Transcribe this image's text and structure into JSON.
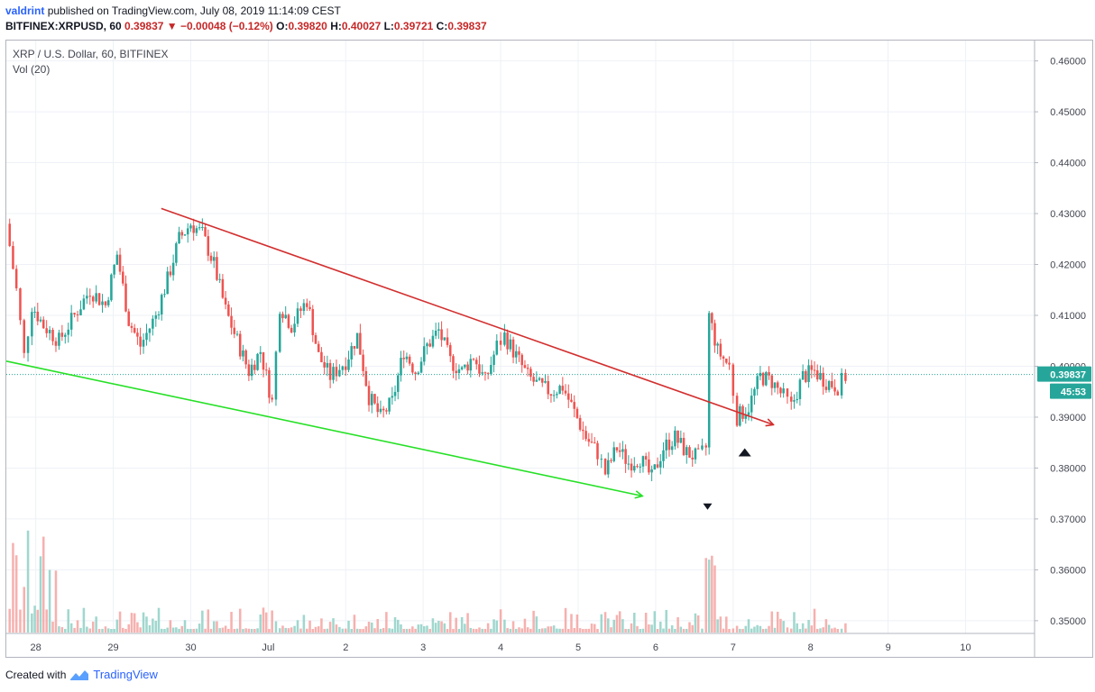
{
  "header": {
    "user": "valdrint",
    "published_text": "published on TradingView.com, July 08, 2019 11:14:09 CEST",
    "symbol": "BITFINEX:XRPUSD, 60",
    "last": "0.39837",
    "change": "−0.00048 (−0.12%)",
    "o_label": "O:",
    "o": "0.39820",
    "h_label": "H:",
    "h": "0.40027",
    "l_label": "L:",
    "l": "0.39721",
    "c_label": "C:",
    "c": "0.39837"
  },
  "legend": {
    "title": "XRP / U.S. Dollar, 60, BITFINEX",
    "volume": "Vol (20)"
  },
  "footer": {
    "created": "Created with",
    "brand": "TradingView"
  },
  "colors": {
    "up": "#26a69a",
    "down": "#ef5350",
    "vol_up": "#8fd0c6",
    "vol_down": "#f4a3a1",
    "resistance": "#d32f2f",
    "support": "#26e026",
    "price_line": "#26a69a"
  },
  "chart_data": {
    "type": "candlestick",
    "title": "XRP / U.S. Dollar, 60, BITFINEX",
    "y_tick_labels": [
      "0.46000",
      "0.45000",
      "0.44000",
      "0.43000",
      "0.42000",
      "0.41000",
      "0.40000",
      "0.39000",
      "0.38000",
      "0.37000",
      "0.36000",
      "0.35000"
    ],
    "y_ticks": [
      0.46,
      0.45,
      0.44,
      0.43,
      0.42,
      0.41,
      0.4,
      0.39,
      0.38,
      0.37,
      0.36,
      0.35
    ],
    "x_tick_labels": [
      "28",
      "29",
      "30",
      "Jul",
      "2",
      "3",
      "4",
      "5",
      "6",
      "7",
      "8",
      "9",
      "10"
    ],
    "x_ticks": [
      28,
      29,
      30,
      31,
      32,
      33,
      34,
      35,
      36,
      37,
      38,
      39,
      40
    ],
    "ylim": [
      0.3475,
      0.464
    ],
    "xlim": [
      27.62,
      40.89
    ],
    "last_price": "0.39837",
    "last_price_value": 0.39837,
    "countdown": "45:53",
    "trendlines": [
      {
        "name": "resistance",
        "x1": 29.62,
        "y1": 0.431,
        "x2": 37.52,
        "y2": 0.3885,
        "arrow": true
      },
      {
        "name": "support",
        "x1": 27.62,
        "y1": 0.401,
        "x2": 35.83,
        "y2": 0.3745,
        "arrow": true
      }
    ],
    "markers": [
      {
        "name": "down-marker",
        "x": 36.67,
        "y": 0.3725,
        "dir": "down"
      },
      {
        "name": "up-marker",
        "x": 37.15,
        "y": 0.383,
        "dir": "up"
      }
    ],
    "path": [
      [
        27.62,
        0.428
      ],
      [
        27.75,
        0.415
      ],
      [
        27.85,
        0.402
      ],
      [
        27.95,
        0.412
      ],
      [
        28.1,
        0.408
      ],
      [
        28.3,
        0.405
      ],
      [
        28.5,
        0.41
      ],
      [
        28.7,
        0.415
      ],
      [
        28.9,
        0.412
      ],
      [
        29.05,
        0.422
      ],
      [
        29.2,
        0.409
      ],
      [
        29.35,
        0.404
      ],
      [
        29.55,
        0.41
      ],
      [
        29.7,
        0.417
      ],
      [
        29.85,
        0.425
      ],
      [
        30.0,
        0.428
      ],
      [
        30.15,
        0.426
      ],
      [
        30.3,
        0.42
      ],
      [
        30.45,
        0.411
      ],
      [
        30.6,
        0.405
      ],
      [
        30.75,
        0.399
      ],
      [
        30.9,
        0.403
      ],
      [
        31.05,
        0.393
      ],
      [
        31.15,
        0.412
      ],
      [
        31.3,
        0.408
      ],
      [
        31.5,
        0.413
      ],
      [
        31.65,
        0.402
      ],
      [
        31.8,
        0.398
      ],
      [
        32.0,
        0.401
      ],
      [
        32.15,
        0.406
      ],
      [
        32.3,
        0.394
      ],
      [
        32.45,
        0.39
      ],
      [
        32.6,
        0.393
      ],
      [
        32.75,
        0.403
      ],
      [
        32.9,
        0.399
      ],
      [
        33.05,
        0.404
      ],
      [
        33.2,
        0.407
      ],
      [
        33.35,
        0.401
      ],
      [
        33.5,
        0.399
      ],
      [
        33.65,
        0.402
      ],
      [
        33.8,
        0.397
      ],
      [
        33.95,
        0.404
      ],
      [
        34.05,
        0.406
      ],
      [
        34.2,
        0.402
      ],
      [
        34.35,
        0.398
      ],
      [
        34.5,
        0.396
      ],
      [
        34.65,
        0.395
      ],
      [
        34.8,
        0.396
      ],
      [
        34.95,
        0.391
      ],
      [
        35.1,
        0.386
      ],
      [
        35.25,
        0.383
      ],
      [
        35.35,
        0.379
      ],
      [
        35.5,
        0.384
      ],
      [
        35.65,
        0.381
      ],
      [
        35.8,
        0.382
      ],
      [
        35.95,
        0.378
      ],
      [
        36.1,
        0.384
      ],
      [
        36.25,
        0.386
      ],
      [
        36.4,
        0.383
      ],
      [
        36.55,
        0.382
      ],
      [
        36.65,
        0.384
      ],
      [
        36.69,
        0.41
      ],
      [
        36.8,
        0.403
      ],
      [
        36.95,
        0.4
      ],
      [
        37.05,
        0.39
      ],
      [
        37.2,
        0.392
      ],
      [
        37.35,
        0.398
      ],
      [
        37.5,
        0.397
      ],
      [
        37.65,
        0.394
      ],
      [
        37.75,
        0.392
      ],
      [
        37.9,
        0.398
      ],
      [
        38.05,
        0.399
      ],
      [
        38.2,
        0.397
      ],
      [
        38.35,
        0.396
      ],
      [
        38.45,
        0.398
      ]
    ]
  }
}
